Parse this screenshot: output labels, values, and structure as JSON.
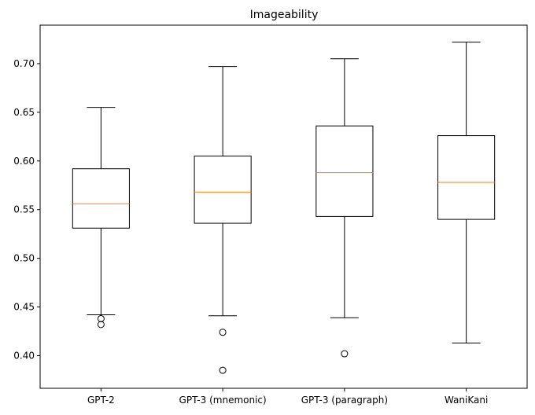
{
  "chart_data": {
    "type": "box",
    "title": "Imageability",
    "xlabel": "",
    "ylabel": "",
    "ylim": [
      0.3665,
      0.7395
    ],
    "yticks": [
      "0.40",
      "0.45",
      "0.50",
      "0.55",
      "0.60",
      "0.65",
      "0.70"
    ],
    "grid": false,
    "categories": [
      "GPT-2",
      "GPT-3 (mnemonic)",
      "GPT-3 (paragraph)",
      "WaniKani"
    ],
    "boxes": [
      {
        "category": "GPT-2",
        "whisker_low": 0.442,
        "q1": 0.531,
        "median": 0.556,
        "q3": 0.592,
        "whisker_high": 0.655,
        "outliers": [
          0.438,
          0.432
        ]
      },
      {
        "category": "GPT-3 (mnemonic)",
        "whisker_low": 0.441,
        "q1": 0.536,
        "median": 0.568,
        "q3": 0.605,
        "whisker_high": 0.697,
        "outliers": [
          0.424,
          0.385
        ]
      },
      {
        "category": "GPT-3 (paragraph)",
        "whisker_low": 0.439,
        "q1": 0.543,
        "median": 0.588,
        "q3": 0.636,
        "whisker_high": 0.705,
        "outliers": [
          0.402
        ]
      },
      {
        "category": "WaniKani",
        "whisker_low": 0.413,
        "q1": 0.54,
        "median": 0.578,
        "q3": 0.626,
        "whisker_high": 0.722,
        "outliers": []
      }
    ],
    "colors": {
      "box": "#000000",
      "median": "#ff7f0e",
      "background": "#ffffff"
    }
  }
}
